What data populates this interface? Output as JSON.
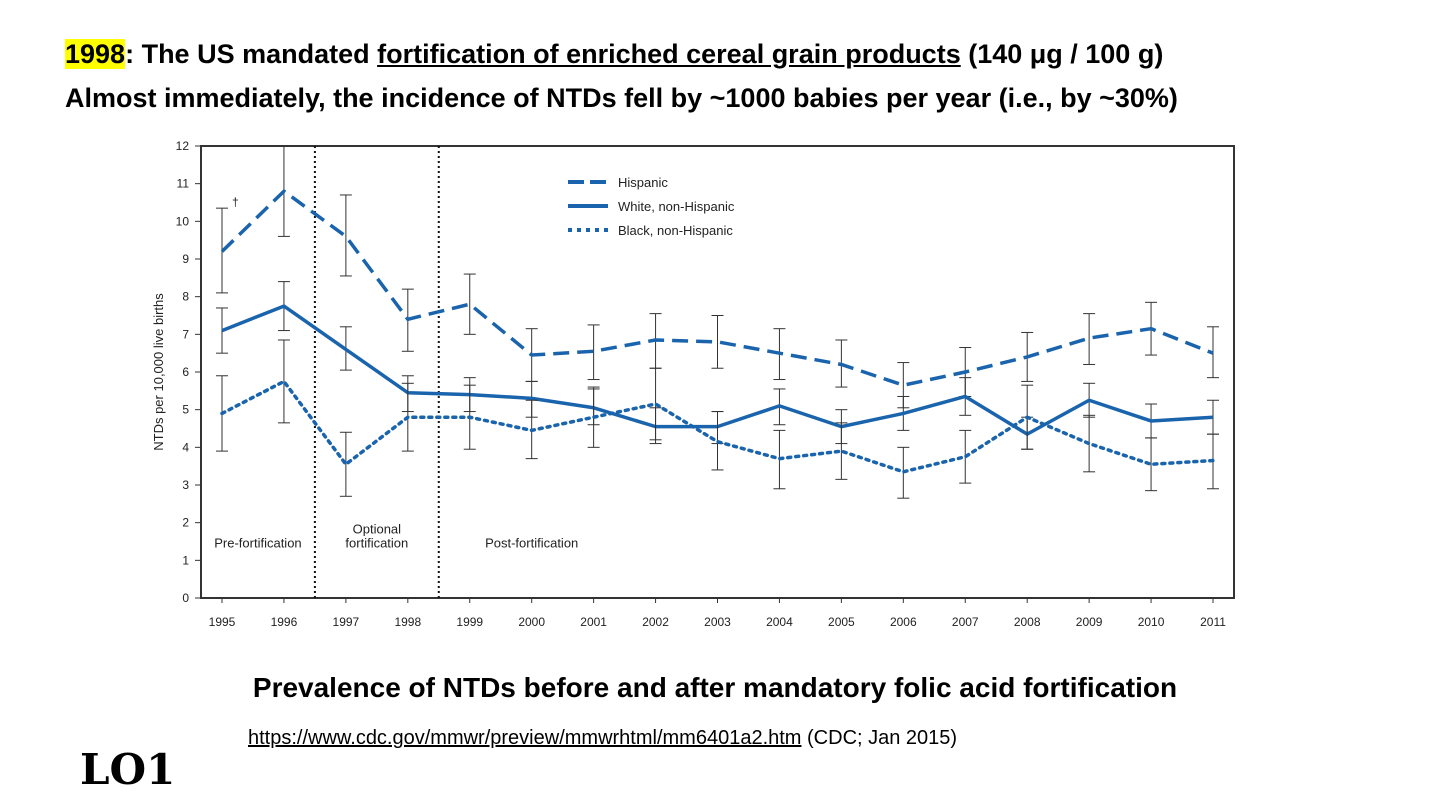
{
  "headline": {
    "year": "1998",
    "part1": ": The US mandated ",
    "link_text": "fortification of enriched cereal grain products",
    "part2": " (140 μg / 100 g)",
    "line2": "Almost immediately, the incidence of NTDs fell by ~1000 babies per year (i.e., by ~30%)"
  },
  "caption": "Prevalence of NTDs before and after mandatory folic acid fortification",
  "source": {
    "url": "https://www.cdc.gov/mmwr/preview/mmwrhtml/mm6401a2.htm",
    "note": " (CDC; Jan 2015)"
  },
  "slide_tag": "LO1",
  "colors": {
    "accent": "#1a64ad",
    "highlight": "#ffff00"
  },
  "chart_data": {
    "type": "line",
    "ylabel": "NTDs per 10,000 live births",
    "xlabel": "",
    "ylim": [
      0,
      12
    ],
    "yticks": [
      0,
      1,
      2,
      3,
      4,
      5,
      6,
      7,
      8,
      9,
      10,
      11,
      12
    ],
    "categories": [
      "1995",
      "1996",
      "1997",
      "1998",
      "1999",
      "2000",
      "2001",
      "2002",
      "2003",
      "2004",
      "2005",
      "2006",
      "2007",
      "2008",
      "2009",
      "2010",
      "2011"
    ],
    "series": [
      {
        "name": "Hispanic",
        "style": "dashed",
        "values": [
          9.2,
          10.8,
          9.6,
          7.4,
          7.8,
          6.45,
          6.55,
          6.85,
          6.8,
          6.5,
          6.2,
          5.65,
          6.0,
          6.4,
          6.9,
          7.15,
          6.5
        ],
        "error_low": [
          8.1,
          9.6,
          8.55,
          6.55,
          7.0,
          5.75,
          5.8,
          6.1,
          6.1,
          5.8,
          5.6,
          5.05,
          5.35,
          5.75,
          6.2,
          6.45,
          5.85
        ],
        "error_high": [
          10.35,
          12.0,
          10.7,
          8.2,
          8.6,
          7.15,
          7.25,
          7.55,
          7.5,
          7.15,
          6.85,
          6.25,
          6.65,
          7.05,
          7.55,
          7.85,
          7.2
        ]
      },
      {
        "name": "White, non-Hispanic",
        "style": "solid",
        "values": [
          7.1,
          7.75,
          6.6,
          5.45,
          5.4,
          5.3,
          5.05,
          4.55,
          4.55,
          5.1,
          4.55,
          4.9,
          5.35,
          4.35,
          5.25,
          4.7,
          4.8
        ],
        "error_low": [
          6.5,
          7.1,
          6.05,
          4.95,
          4.95,
          4.8,
          4.6,
          4.1,
          4.1,
          4.6,
          4.1,
          4.45,
          4.85,
          3.95,
          4.8,
          4.25,
          4.35
        ],
        "error_high": [
          7.7,
          8.4,
          7.2,
          5.9,
          5.85,
          5.75,
          5.55,
          5.05,
          4.95,
          5.55,
          5.0,
          5.35,
          5.85,
          4.8,
          5.7,
          5.15,
          5.25
        ]
      },
      {
        "name": "Black, non-Hispanic",
        "style": "dotted",
        "values": [
          4.9,
          5.75,
          3.55,
          4.8,
          4.8,
          4.45,
          4.8,
          5.15,
          4.15,
          3.7,
          3.9,
          3.35,
          3.75,
          4.8,
          4.1,
          3.55,
          3.65
        ],
        "error_low": [
          3.9,
          4.65,
          2.7,
          3.9,
          3.95,
          3.7,
          4.0,
          4.2,
          3.4,
          2.9,
          3.15,
          2.65,
          3.05,
          3.95,
          3.35,
          2.85,
          2.9
        ],
        "error_high": [
          5.9,
          6.85,
          4.4,
          5.7,
          5.65,
          5.25,
          5.6,
          6.1,
          4.95,
          4.45,
          4.65,
          4.0,
          4.45,
          5.65,
          4.85,
          4.25,
          4.35
        ]
      }
    ],
    "phase_dividers_after": [
      "1996",
      "1998"
    ],
    "period_labels": [
      {
        "lines": [
          "Pre-fortification"
        ]
      },
      {
        "lines": [
          "Optional",
          "fortification"
        ]
      },
      {
        "lines": [
          "Post-fortification"
        ]
      }
    ],
    "annotations": [
      {
        "text": "†",
        "at": "1995 Hispanic upper error bar"
      }
    ],
    "legend_position": "top-center"
  }
}
